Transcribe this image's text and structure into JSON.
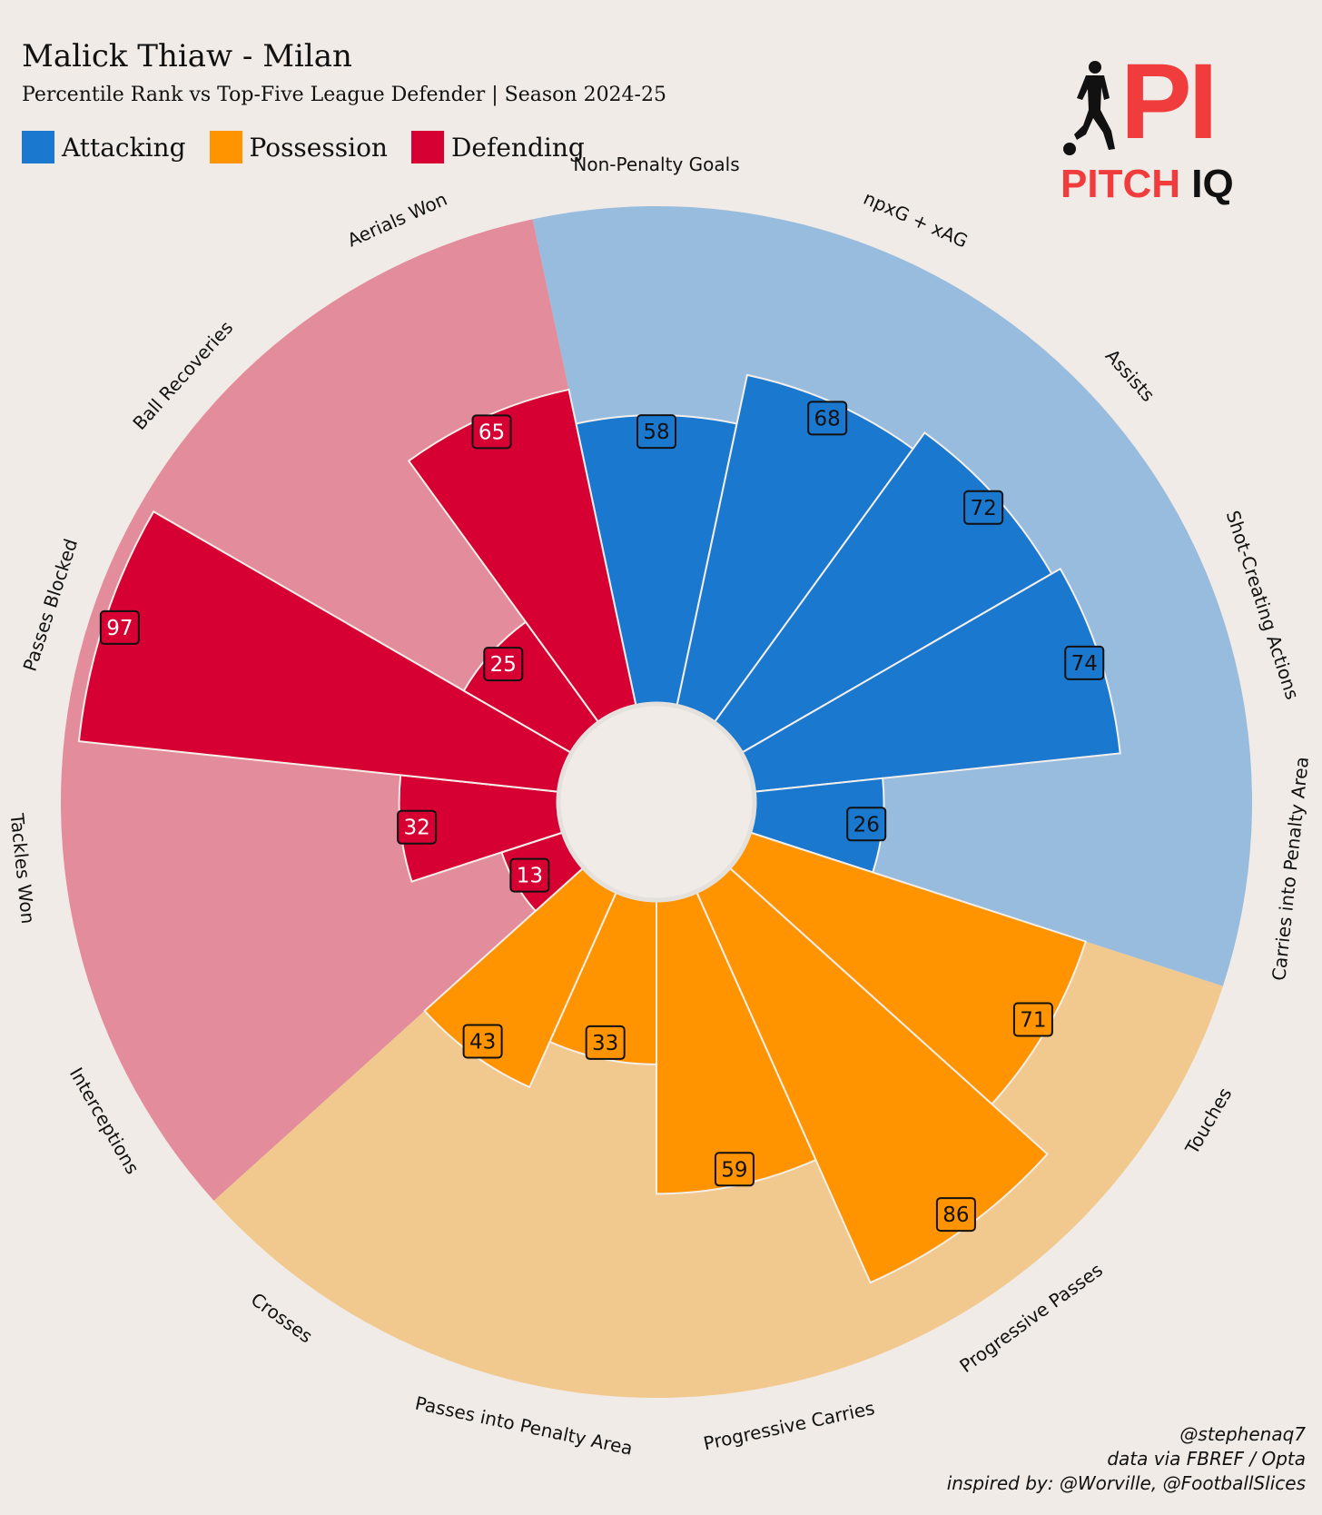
{
  "header": {
    "title": "Malick Thiaw - Milan",
    "subtitle": "Percentile Rank vs Top-Five League Defender | Season 2024-25"
  },
  "legend": [
    {
      "label": "Attacking",
      "color": "#1b78cf"
    },
    {
      "label": "Possession",
      "color": "#ff9400"
    },
    {
      "label": "Defending",
      "color": "#d70032"
    }
  ],
  "logo": {
    "mark": "PI",
    "word1": "PITCH",
    "word2": "IQ",
    "icon": "footballer-silhouette-icon"
  },
  "credits": [
    "@stephenaq7",
    "data via FBREF / Opta",
    "inspired by: @Worville, @FootballSlices"
  ],
  "chart_data": {
    "type": "radial-bar",
    "rlim": [
      0,
      100
    ],
    "groups": [
      {
        "name": "Attacking",
        "color": "#1b78cf",
        "bg": "#98bcde"
      },
      {
        "name": "Possession",
        "color": "#ff9400",
        "bg": "#f1c88e"
      },
      {
        "name": "Defending",
        "color": "#d70032",
        "bg": "#e38c9b"
      }
    ],
    "categories": [
      "Non-Penalty Goals",
      "npxG + xAG",
      "Assists",
      "Shot-Creating Actions",
      "Carries into Penalty Area",
      "Touches",
      "Progressive Passes",
      "Progressive Carries",
      "Passes into Penalty Area",
      "Crosses",
      "Interceptions",
      "Tackles Won",
      "Passes Blocked",
      "Ball Recoveries",
      "Aerials Won"
    ],
    "group_of": [
      "Attacking",
      "Attacking",
      "Attacking",
      "Attacking",
      "Attacking",
      "Possession",
      "Possession",
      "Possession",
      "Possession",
      "Possession",
      "Defending",
      "Defending",
      "Defending",
      "Defending",
      "Defending"
    ],
    "values": [
      58,
      68,
      72,
      74,
      26,
      71,
      86,
      59,
      33,
      43,
      13,
      32,
      97,
      25,
      65
    ]
  }
}
